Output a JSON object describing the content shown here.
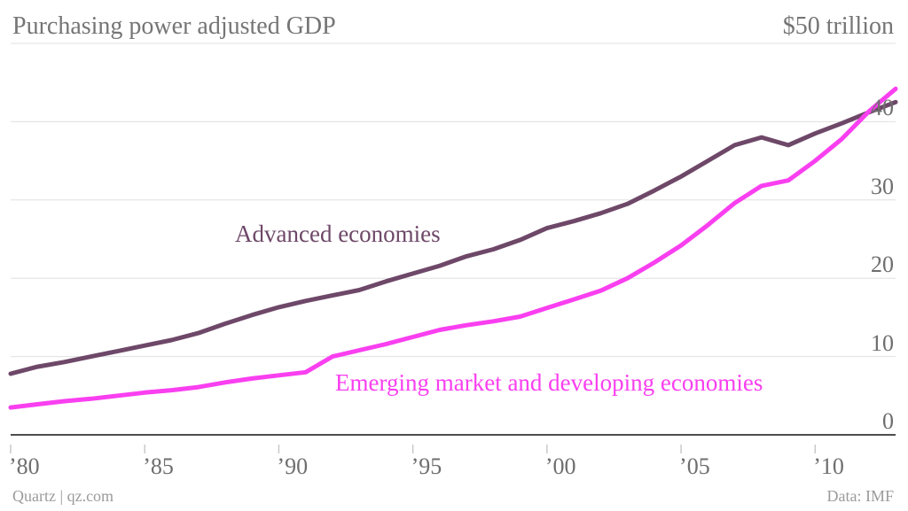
{
  "header": {
    "title": "Purchasing power adjusted GDP",
    "unit_label": "$50 trillion"
  },
  "footer": {
    "source": "Quartz | qz.com",
    "credit": "Data: IMF"
  },
  "colors": {
    "advanced": "#6e4868",
    "emerging": "#f93ff0",
    "grid": "#e0e0e0",
    "axis": "#4d4d4d",
    "tick": "#c9c9c9",
    "title_gray": "#757575",
    "axis_label_gray": "#6e6e6e",
    "footer_gray": "#9b9b9b"
  },
  "chart_data": {
    "type": "line",
    "title": "Purchasing power adjusted GDP",
    "unit_label": "$50 trillion",
    "grid": true,
    "legend_position": "inline-labels",
    "x_range": [
      1980,
      2013
    ],
    "ylim": [
      0,
      50
    ],
    "y_ticks": [
      0,
      10,
      20,
      30,
      40
    ],
    "x_ticks": [
      {
        "year": 1980,
        "label": "’80"
      },
      {
        "year": 1985,
        "label": "’85"
      },
      {
        "year": 1990,
        "label": "’90"
      },
      {
        "year": 1995,
        "label": "’95"
      },
      {
        "year": 2000,
        "label": "’00"
      },
      {
        "year": 2005,
        "label": "’05"
      },
      {
        "year": 2010,
        "label": "’10"
      }
    ],
    "x": [
      1980,
      1981,
      1982,
      1983,
      1984,
      1985,
      1986,
      1987,
      1988,
      1989,
      1990,
      1991,
      1992,
      1993,
      1994,
      1995,
      1996,
      1997,
      1998,
      1999,
      2000,
      2001,
      2002,
      2003,
      2004,
      2005,
      2006,
      2007,
      2008,
      2009,
      2010,
      2011,
      2012,
      2013
    ],
    "series": [
      {
        "name": "Advanced economies",
        "color": "#6e4868",
        "values": [
          7.8,
          8.7,
          9.3,
          10.0,
          10.7,
          11.4,
          12.1,
          13.0,
          14.2,
          15.3,
          16.3,
          17.1,
          17.8,
          18.5,
          19.6,
          20.6,
          21.6,
          22.8,
          23.7,
          24.9,
          26.4,
          27.3,
          28.3,
          29.5,
          31.2,
          33.0,
          35.0,
          37.0,
          38.0,
          37.0,
          38.5,
          39.8,
          41.2,
          42.5
        ]
      },
      {
        "name": "Emerging market and developing economies",
        "color": "#f93ff0",
        "values": [
          3.5,
          3.9,
          4.3,
          4.6,
          5.0,
          5.4,
          5.7,
          6.1,
          6.7,
          7.2,
          7.6,
          8.0,
          10.0,
          10.8,
          11.6,
          12.5,
          13.4,
          14.0,
          14.5,
          15.1,
          16.2,
          17.3,
          18.4,
          20.0,
          22.0,
          24.2,
          26.8,
          29.6,
          31.8,
          32.5,
          35.0,
          37.8,
          41.3,
          44.2
        ]
      }
    ]
  }
}
